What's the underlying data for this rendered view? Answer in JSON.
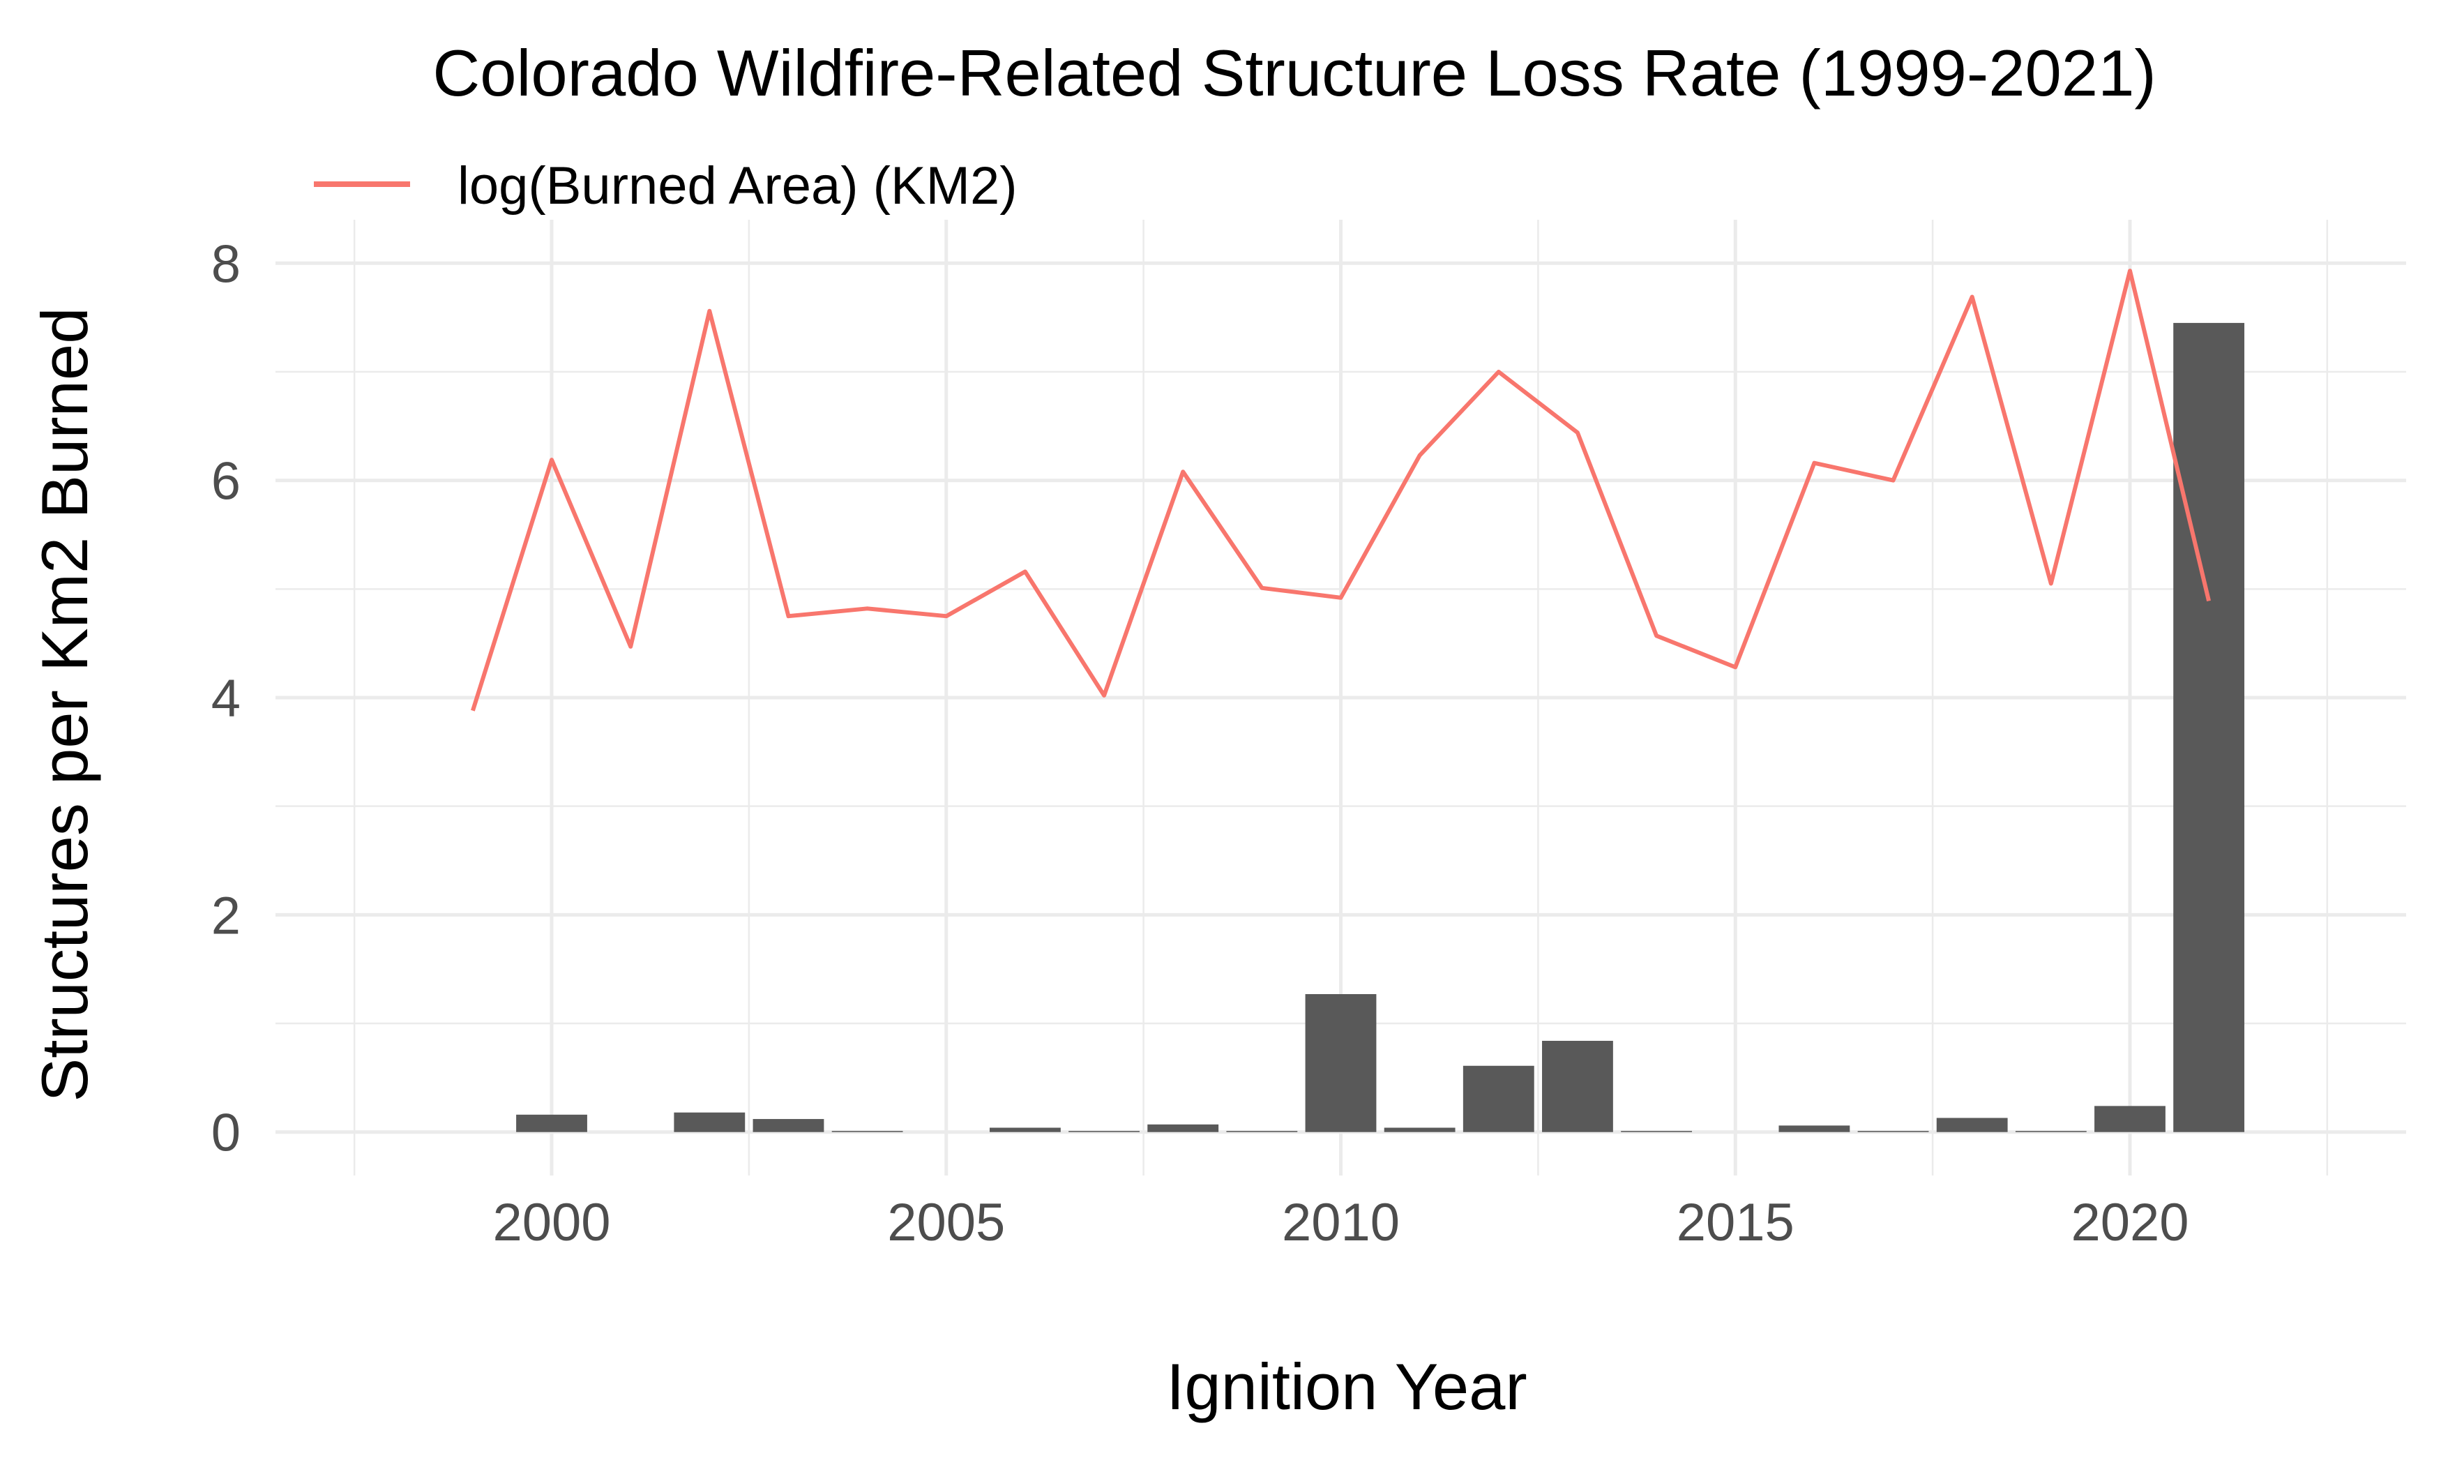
{
  "chart_data": {
    "type": "bar",
    "title": "Colorado Wildfire-Related Structure Loss Rate (1999-2021)",
    "xlabel": "Ignition Year",
    "ylabel": "Structures per Km2 Burned",
    "x_ticks": [
      2000,
      2005,
      2010,
      2015,
      2020
    ],
    "y_ticks": [
      0,
      2,
      4,
      6,
      8
    ],
    "xlim": [
      1996.5,
      2023.5
    ],
    "ylim": [
      -0.4,
      8.4
    ],
    "grid": true,
    "legend_position": "top-left",
    "categories": [
      1999,
      2000,
      2001,
      2002,
      2003,
      2004,
      2005,
      2006,
      2007,
      2008,
      2009,
      2010,
      2011,
      2012,
      2013,
      2014,
      2015,
      2016,
      2017,
      2018,
      2019,
      2020,
      2021
    ],
    "series": [
      {
        "kind": "bar",
        "color": "#595959",
        "values": [
          0,
          0.16,
          0,
          0.18,
          0.12,
          0.01,
          0,
          0.04,
          0.01,
          0.07,
          0.01,
          1.27,
          0.04,
          0.61,
          0.84,
          0.01,
          0,
          0.06,
          0.01,
          0.13,
          0.01,
          0.24,
          7.45
        ]
      },
      {
        "kind": "line",
        "name": "log(Burned Area) (KM2)",
        "color": "#F8766D",
        "values": [
          3.88,
          6.19,
          4.47,
          7.56,
          4.75,
          4.82,
          4.75,
          5.16,
          4.02,
          6.08,
          5.01,
          4.92,
          6.23,
          7.0,
          6.44,
          4.57,
          4.28,
          6.16,
          6.0,
          7.69,
          5.05,
          7.93,
          4.89
        ]
      }
    ]
  }
}
